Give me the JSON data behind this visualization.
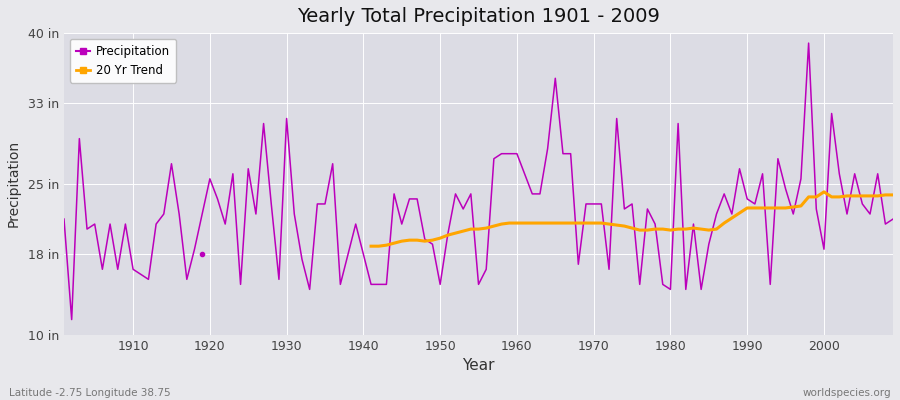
{
  "title": "Yearly Total Precipitation 1901 - 2009",
  "xlabel": "Year",
  "ylabel": "Precipitation",
  "bottom_left_label": "Latitude -2.75 Longitude 38.75",
  "bottom_right_label": "worldspecies.org",
  "bg_color": "#e8e8ec",
  "plot_bg_color": "#dcdce4",
  "line_color": "#bb00bb",
  "trend_color": "#ffa500",
  "ylim": [
    10,
    40
  ],
  "yticks": [
    10,
    18,
    25,
    33,
    40
  ],
  "ytick_labels": [
    "10 in",
    "18 in",
    "25 in",
    "33 in",
    "40 in"
  ],
  "xlim": [
    1901,
    2009
  ],
  "xticks": [
    1910,
    1920,
    1930,
    1940,
    1950,
    1960,
    1970,
    1980,
    1990,
    2000
  ],
  "years": [
    1901,
    1902,
    1903,
    1904,
    1905,
    1906,
    1907,
    1908,
    1909,
    1910,
    1911,
    1912,
    1913,
    1914,
    1915,
    1916,
    1917,
    1918,
    1920,
    1921,
    1922,
    1923,
    1924,
    1925,
    1926,
    1927,
    1928,
    1929,
    1930,
    1931,
    1932,
    1933,
    1934,
    1935,
    1936,
    1937,
    1938,
    1939,
    1940,
    1941,
    1942,
    1943,
    1944,
    1945,
    1946,
    1947,
    1948,
    1949,
    1950,
    1951,
    1952,
    1953,
    1954,
    1955,
    1956,
    1957,
    1958,
    1959,
    1960,
    1961,
    1962,
    1963,
    1964,
    1965,
    1966,
    1967,
    1968,
    1969,
    1970,
    1971,
    1972,
    1973,
    1974,
    1975,
    1976,
    1977,
    1978,
    1979,
    1980,
    1981,
    1982,
    1983,
    1984,
    1985,
    1986,
    1987,
    1988,
    1989,
    1990,
    1991,
    1992,
    1993,
    1994,
    1995,
    1996,
    1997,
    1998,
    1999,
    2000,
    2001,
    2002,
    2003,
    2004,
    2005,
    2006,
    2007,
    2008,
    2009
  ],
  "precip": [
    21.5,
    11.5,
    29.5,
    20.5,
    21.0,
    16.5,
    21.0,
    16.5,
    21.0,
    16.5,
    16.0,
    15.5,
    21.0,
    22.0,
    27.0,
    22.0,
    15.5,
    18.5,
    25.5,
    23.5,
    21.0,
    26.0,
    15.0,
    26.5,
    22.0,
    31.0,
    23.0,
    15.5,
    31.5,
    22.0,
    17.5,
    14.5,
    23.0,
    23.0,
    27.0,
    15.0,
    18.0,
    21.0,
    18.0,
    15.0,
    15.0,
    15.0,
    24.0,
    21.0,
    23.5,
    23.5,
    19.5,
    19.0,
    15.0,
    20.0,
    24.0,
    22.5,
    24.0,
    15.0,
    16.5,
    27.5,
    28.0,
    28.0,
    28.0,
    26.0,
    24.0,
    24.0,
    28.5,
    35.5,
    28.0,
    28.0,
    17.0,
    23.0,
    23.0,
    23.0,
    16.5,
    31.5,
    22.5,
    23.0,
    15.0,
    22.5,
    21.0,
    15.0,
    14.5,
    31.0,
    14.5,
    21.0,
    14.5,
    19.0,
    22.0,
    24.0,
    22.0,
    26.5,
    23.5,
    23.0,
    26.0,
    15.0,
    27.5,
    24.5,
    22.0,
    25.5,
    39.0,
    22.5,
    18.5,
    32.0,
    26.0,
    22.0,
    26.0,
    23.0,
    22.0,
    26.0,
    21.0,
    21.5
  ],
  "outlier_year": 1919,
  "outlier_value": 18.0,
  "trend_start_year": 1941,
  "trend_years": [
    1941,
    1942,
    1943,
    1944,
    1945,
    1946,
    1947,
    1948,
    1949,
    1950,
    1951,
    1952,
    1953,
    1954,
    1955,
    1956,
    1957,
    1958,
    1959,
    1960,
    1961,
    1962,
    1963,
    1964,
    1965,
    1966,
    1967,
    1968,
    1969,
    1970,
    1971,
    1972,
    1973,
    1974,
    1975,
    1976,
    1977,
    1978,
    1979,
    1980,
    1981,
    1982,
    1983,
    1984,
    1985,
    1986,
    1987,
    1988,
    1989,
    1990,
    1991,
    1992,
    1993,
    1994,
    1995,
    1996,
    1997,
    1998,
    1999,
    2000,
    2001,
    2002,
    2003,
    2004,
    2005,
    2006,
    2007,
    2008,
    2009
  ],
  "trend_values": [
    18.8,
    18.8,
    18.9,
    19.1,
    19.3,
    19.4,
    19.4,
    19.3,
    19.4,
    19.6,
    19.9,
    20.1,
    20.3,
    20.5,
    20.5,
    20.6,
    20.8,
    21.0,
    21.1,
    21.1,
    21.1,
    21.1,
    21.1,
    21.1,
    21.1,
    21.1,
    21.1,
    21.1,
    21.1,
    21.1,
    21.1,
    21.0,
    20.9,
    20.8,
    20.6,
    20.4,
    20.4,
    20.5,
    20.5,
    20.4,
    20.5,
    20.5,
    20.6,
    20.5,
    20.4,
    20.5,
    21.1,
    21.6,
    22.1,
    22.6,
    22.6,
    22.6,
    22.6,
    22.6,
    22.6,
    22.7,
    22.8,
    23.7,
    23.7,
    24.2,
    23.7,
    23.7,
    23.8,
    23.8,
    23.8,
    23.8,
    23.8,
    23.9,
    23.9
  ]
}
